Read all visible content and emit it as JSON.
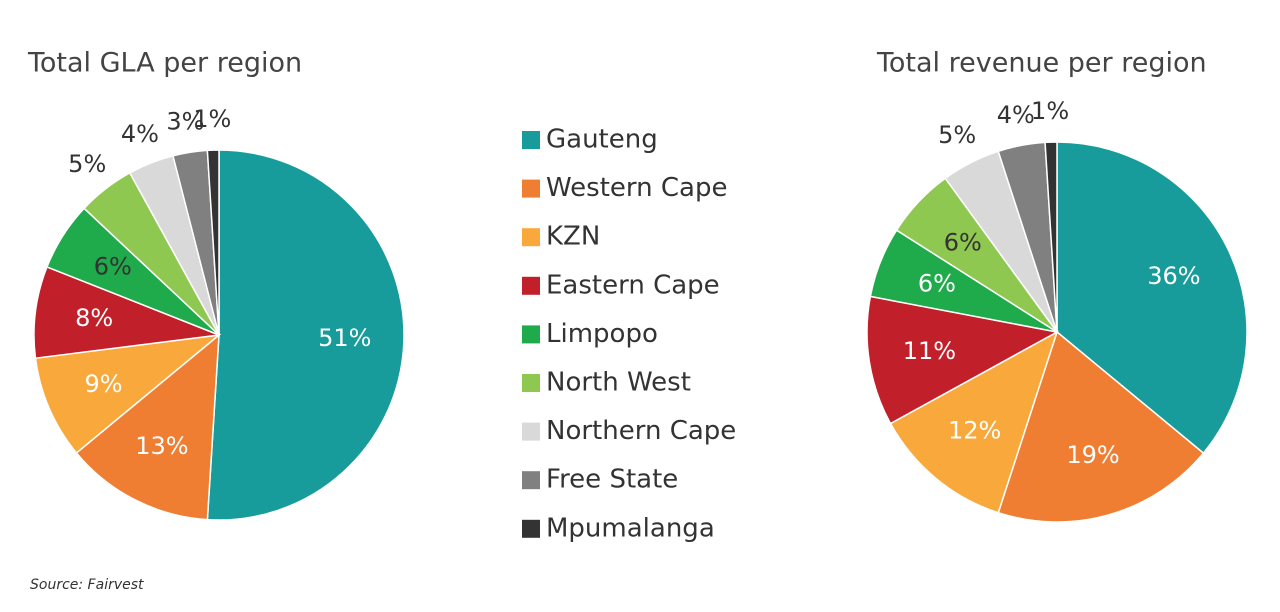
{
  "chart_data": [
    {
      "type": "pie",
      "title": "Total GLA per region",
      "values": [
        51,
        13,
        9,
        8,
        6,
        5,
        4,
        3,
        1
      ],
      "value_labels": [
        "51%",
        "13%",
        "9%",
        "8%",
        "6%",
        "5%",
        "4%",
        "3%",
        "1%"
      ]
    },
    {
      "type": "pie",
      "title": "Total revenue per region",
      "values": [
        36,
        19,
        12,
        11,
        6,
        6,
        5,
        4,
        1
      ],
      "value_labels": [
        "36%",
        "19%",
        "12%",
        "11%",
        "6%",
        "6%",
        "5%",
        "4%",
        "1%"
      ]
    }
  ],
  "legend": {
    "categories": [
      "Gauteng",
      "Western Cape",
      "KZN",
      "Eastern Cape",
      "Limpopo",
      "North West",
      "Northern Cape",
      "Free State",
      "Mpumalanga"
    ],
    "colors": [
      "#179b9b",
      "#ef7d32",
      "#f9a93c",
      "#c1202b",
      "#1faa4b",
      "#8fc850",
      "#d9d9d9",
      "#808080",
      "#333333"
    ]
  },
  "source": "Source: Fairvest"
}
